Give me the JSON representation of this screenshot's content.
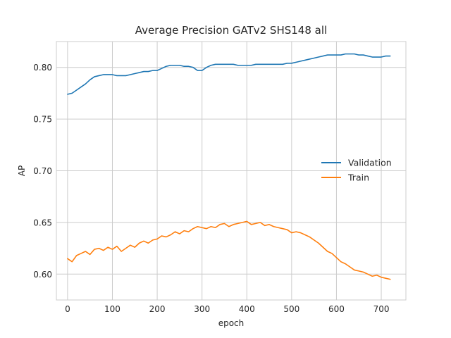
{
  "chart_data": {
    "type": "line",
    "title": "Average Precision GATv2 SHS148 all",
    "xlabel": "epoch",
    "ylabel": "AP",
    "xlim": [
      -25,
      755
    ],
    "ylim": [
      0.575,
      0.825
    ],
    "xticks": [
      0,
      100,
      200,
      300,
      400,
      500,
      600,
      700
    ],
    "yticks": [
      0.6,
      0.65,
      0.7,
      0.75,
      0.8
    ],
    "ytick_labels": [
      "0.60",
      "0.65",
      "0.70",
      "0.75",
      "0.80"
    ],
    "grid": true,
    "legend_position": "center-right",
    "series": [
      {
        "name": "Validation",
        "color": "#1f77b4",
        "x": [
          0,
          10,
          20,
          30,
          40,
          50,
          60,
          70,
          80,
          90,
          100,
          110,
          120,
          130,
          140,
          150,
          160,
          170,
          180,
          190,
          200,
          210,
          220,
          230,
          240,
          250,
          260,
          270,
          280,
          290,
          300,
          310,
          320,
          330,
          340,
          350,
          360,
          370,
          380,
          390,
          400,
          410,
          420,
          430,
          440,
          450,
          460,
          470,
          480,
          490,
          500,
          510,
          520,
          530,
          540,
          550,
          560,
          570,
          580,
          590,
          600,
          610,
          620,
          630,
          640,
          650,
          660,
          670,
          680,
          690,
          700,
          710,
          720
        ],
        "y": [
          0.774,
          0.775,
          0.778,
          0.781,
          0.784,
          0.788,
          0.791,
          0.792,
          0.793,
          0.793,
          0.793,
          0.792,
          0.792,
          0.792,
          0.793,
          0.794,
          0.795,
          0.796,
          0.796,
          0.797,
          0.797,
          0.799,
          0.801,
          0.802,
          0.802,
          0.802,
          0.801,
          0.801,
          0.8,
          0.797,
          0.797,
          0.8,
          0.802,
          0.803,
          0.803,
          0.803,
          0.803,
          0.803,
          0.802,
          0.802,
          0.802,
          0.802,
          0.803,
          0.803,
          0.803,
          0.803,
          0.803,
          0.803,
          0.803,
          0.804,
          0.804,
          0.805,
          0.806,
          0.807,
          0.808,
          0.809,
          0.81,
          0.811,
          0.812,
          0.812,
          0.812,
          0.812,
          0.813,
          0.813,
          0.813,
          0.812,
          0.812,
          0.811,
          0.81,
          0.81,
          0.81,
          0.811,
          0.811
        ]
      },
      {
        "name": "Train",
        "color": "#ff7f0e",
        "x": [
          0,
          10,
          20,
          30,
          40,
          50,
          60,
          70,
          80,
          90,
          100,
          110,
          120,
          130,
          140,
          150,
          160,
          170,
          180,
          190,
          200,
          210,
          220,
          230,
          240,
          250,
          260,
          270,
          280,
          290,
          300,
          310,
          320,
          330,
          340,
          350,
          360,
          370,
          380,
          390,
          400,
          410,
          420,
          430,
          440,
          450,
          460,
          470,
          480,
          490,
          500,
          510,
          520,
          530,
          540,
          550,
          560,
          570,
          580,
          590,
          600,
          610,
          620,
          630,
          640,
          650,
          660,
          670,
          680,
          690,
          700,
          710,
          720
        ],
        "y": [
          0.615,
          0.612,
          0.618,
          0.62,
          0.622,
          0.619,
          0.624,
          0.625,
          0.623,
          0.626,
          0.624,
          0.627,
          0.622,
          0.625,
          0.628,
          0.626,
          0.63,
          0.632,
          0.63,
          0.633,
          0.634,
          0.637,
          0.636,
          0.638,
          0.641,
          0.639,
          0.642,
          0.641,
          0.644,
          0.646,
          0.645,
          0.644,
          0.646,
          0.645,
          0.648,
          0.649,
          0.646,
          0.648,
          0.649,
          0.65,
          0.651,
          0.648,
          0.649,
          0.65,
          0.647,
          0.648,
          0.646,
          0.645,
          0.644,
          0.643,
          0.64,
          0.641,
          0.64,
          0.638,
          0.636,
          0.633,
          0.63,
          0.626,
          0.622,
          0.62,
          0.616,
          0.612,
          0.61,
          0.607,
          0.604,
          0.603,
          0.602,
          0.6,
          0.598,
          0.599,
          0.597,
          0.596,
          0.595
        ]
      }
    ]
  }
}
